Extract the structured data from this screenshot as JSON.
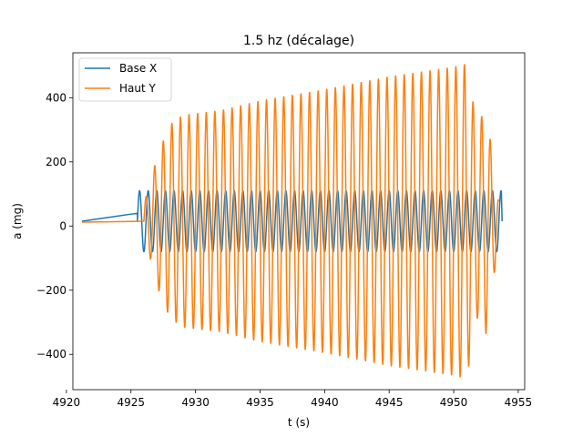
{
  "chart_data": {
    "type": "line",
    "title": "1.5 hz (décalage)",
    "xlabel": "t (s)",
    "ylabel": "a (mg)",
    "xlim": [
      4920.5,
      4955.5
    ],
    "ylim": [
      -510,
      540
    ],
    "x_ticks": [
      4920,
      4925,
      4930,
      4935,
      4940,
      4945,
      4950,
      4955
    ],
    "x_tick_labels": [
      "4920",
      "4925",
      "4930",
      "4935",
      "4940",
      "4945",
      "4950",
      "4955"
    ],
    "y_ticks": [
      -400,
      -200,
      0,
      200,
      400
    ],
    "y_tick_labels": [
      "−400",
      "−200",
      "0",
      "200",
      "400"
    ],
    "grid": false,
    "legend_position": "top-left",
    "series": [
      {
        "name": "Base X",
        "color": "#1f77b4",
        "start_time": 4921.2,
        "start_value": 15,
        "ramp_end_time": 4925.5,
        "ramp_end_value": 40,
        "osc_start": 4925.5,
        "osc_end": 4953.7,
        "frequency_hz": 1.5,
        "amplitude": 95,
        "offset": 15,
        "end_value": 15
      },
      {
        "name": "Haut Y",
        "color": "#ff7f0e",
        "start_time": 4921.2,
        "start_value": 12,
        "ramp_end_time": 4926.0,
        "ramp_end_value": 15,
        "osc_start": 4926.0,
        "osc_end": 4953.5,
        "frequency_hz": 1.5,
        "amplitude_envelope": [
          {
            "t": 4926.0,
            "amp": 60
          },
          {
            "t": 4926.4,
            "amp": 100
          },
          {
            "t": 4927.0,
            "amp": 200
          },
          {
            "t": 4928.0,
            "amp": 300
          },
          {
            "t": 4929.0,
            "amp": 330
          },
          {
            "t": 4932.0,
            "amp": 345
          },
          {
            "t": 4935.0,
            "amp": 375
          },
          {
            "t": 4940.0,
            "amp": 410
          },
          {
            "t": 4945.0,
            "amp": 450
          },
          {
            "t": 4950.0,
            "amp": 480
          },
          {
            "t": 4951.0,
            "amp": 490
          },
          {
            "t": 4951.8,
            "amp": 300
          },
          {
            "t": 4952.5,
            "amp": 350
          },
          {
            "t": 4953.5,
            "amp": 60
          }
        ],
        "offset": 15
      }
    ]
  }
}
